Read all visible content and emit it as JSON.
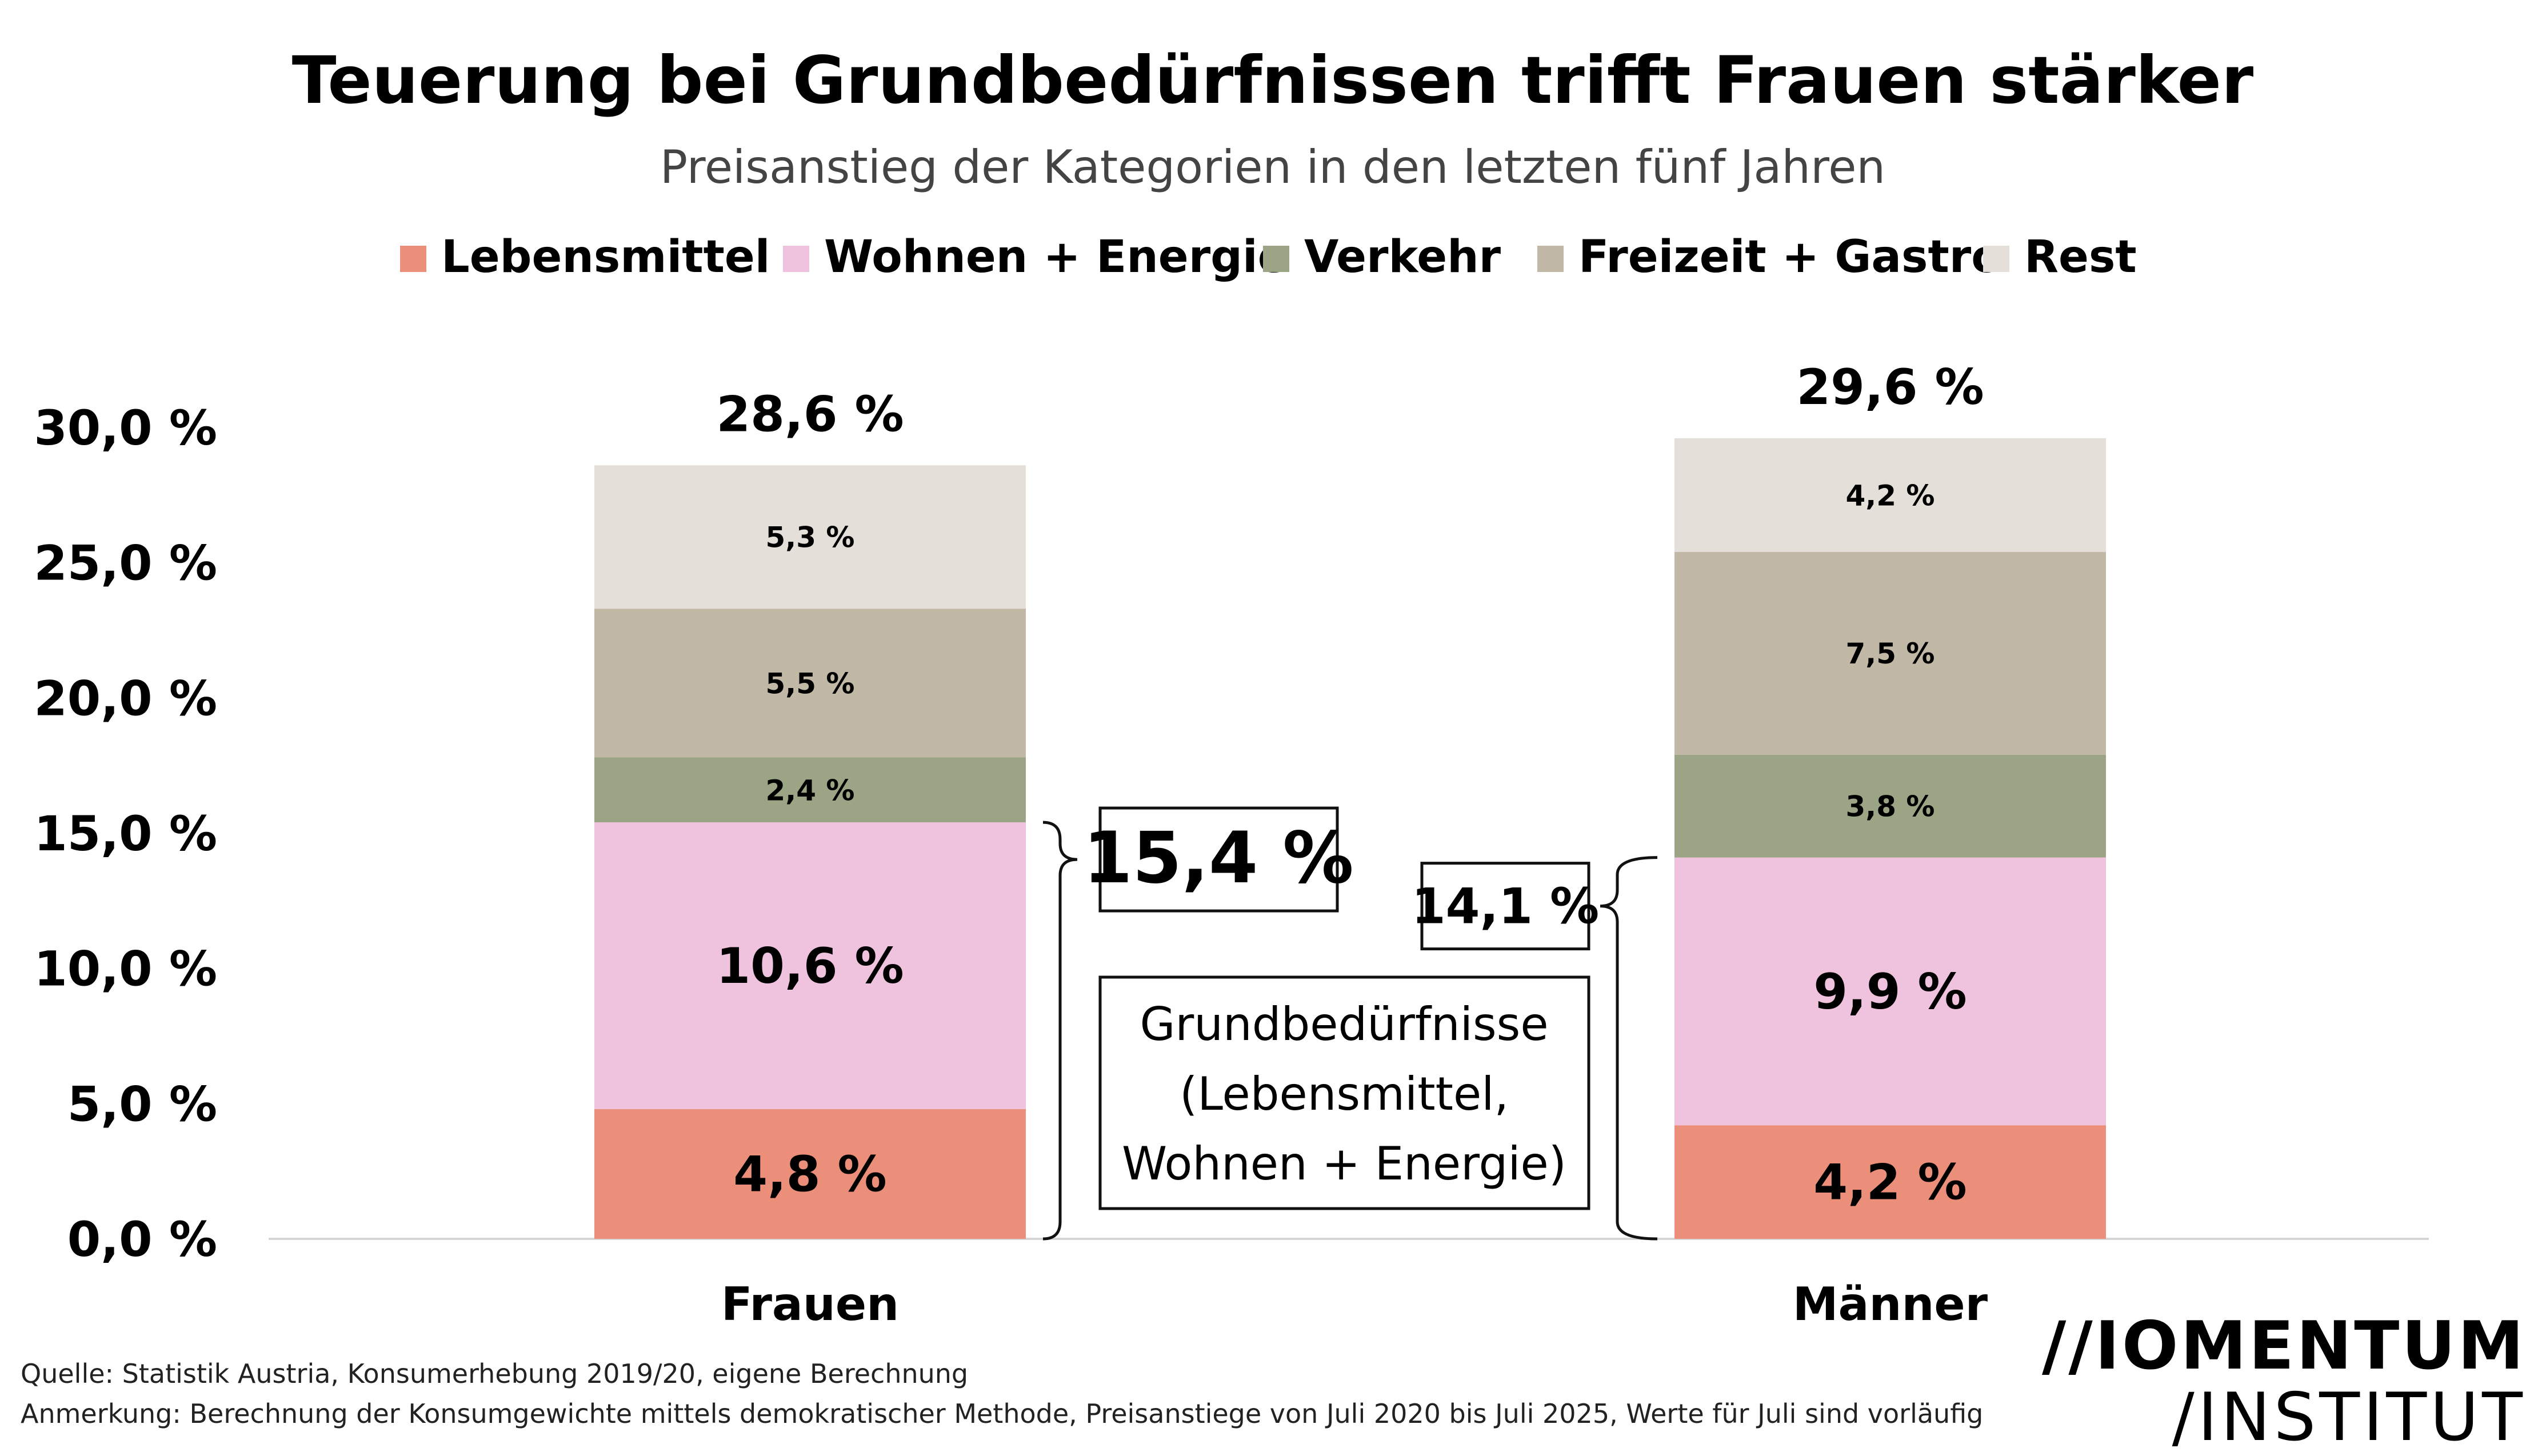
{
  "title": "Teuerung bei Grundbedürfnissen trifft Frauen stärker",
  "subtitle": "Preisanstieg der Kategorien in den letzten fünf Jahren",
  "colors": {
    "Lebensmittel": "#EB8F7A",
    "Wohnen + Energie": "#EFC2DE",
    "Verkehr": "#9BA484",
    "Freizeit + Gastro": "#C1B9A6",
    "Rest": "#E4E0D9"
  },
  "chart_data": {
    "type": "bar",
    "stacked": true,
    "categories": [
      "Frauen",
      "Männer"
    ],
    "series": [
      {
        "name": "Lebensmittel",
        "values": [
          4.8,
          4.2
        ],
        "labels": [
          "4,8 %",
          "4,2 %"
        ]
      },
      {
        "name": "Wohnen + Energie",
        "values": [
          10.6,
          9.9
        ],
        "labels": [
          "10,6 %",
          "9,9 %"
        ]
      },
      {
        "name": "Verkehr",
        "values": [
          2.4,
          3.8
        ],
        "labels": [
          "2,4 %",
          "3,8 %"
        ]
      },
      {
        "name": "Freizeit + Gastro",
        "values": [
          5.5,
          7.5
        ],
        "labels": [
          "5,5 %",
          "7,5 %"
        ]
      },
      {
        "name": "Rest",
        "values": [
          5.3,
          4.2
        ],
        "labels": [
          "5,3 %",
          "4,2 %"
        ]
      }
    ],
    "totals": [
      28.6,
      29.6
    ],
    "total_labels": [
      "28,6 %",
      "29,6 %"
    ],
    "ylim": [
      0,
      30
    ],
    "yticks": [
      0,
      5,
      10,
      15,
      20,
      25,
      30
    ],
    "ytick_labels": [
      "0,0 %",
      "5,0 %",
      "10,0 %",
      "15,0 %",
      "20,0 %",
      "25,0 %",
      "30,0 %"
    ],
    "legend_position": "top",
    "grid": false
  },
  "annotations": {
    "frauen_basic_total": "15,4 %",
    "maenner_basic_total": "14,1 %",
    "basic_needs_label": [
      "Grundbedürfnisse",
      "(Lebensmittel,",
      "Wohnen + Energie)"
    ]
  },
  "footer": {
    "source": "Quelle: Statistik Austria, Konsumerhebung 2019/20, eigene Berechnung",
    "note": "Anmerkung: Berechnung der Konsumgewichte mittels demokratischer Methode, Preisanstiege von Juli 2020 bis Juli 2025, Werte für Juli sind vorläufig"
  },
  "logo": {
    "line1": "//IOMENTUM",
    "line2": "/INSTITUT"
  }
}
